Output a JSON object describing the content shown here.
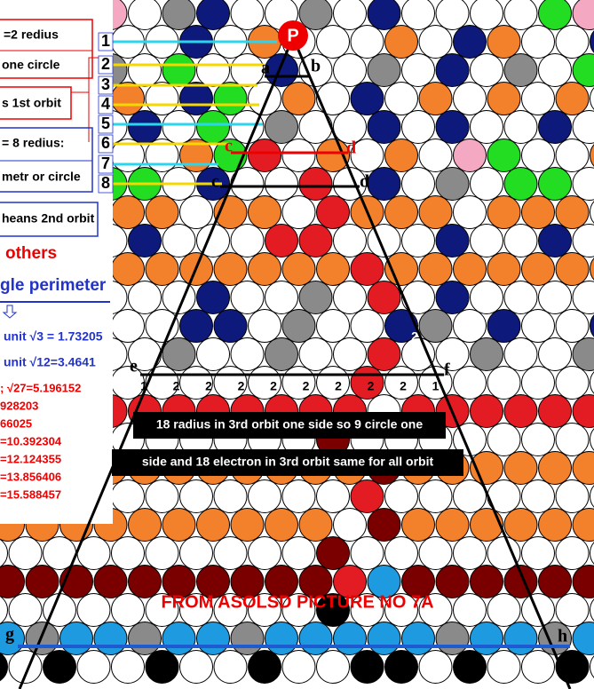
{
  "left_panel": {
    "box1": [
      "=2 redius",
      "one circle"
    ],
    "box2": "s 1st orbit",
    "box3": [
      "= 8 redius:",
      "metr or circle"
    ],
    "box4": "heans 2nd orbit",
    "others": "others",
    "perimeter": "gle perimeter",
    "blue_lines": [
      "unit √3 = 1.73205",
      "unit √12=3.4641"
    ],
    "red_lines": [
      "; √27=5.196152",
      "928203",
      "66025",
      "=10.392304",
      "=12.124355",
      "=13.856406",
      "=15.588457"
    ]
  },
  "row_numbers": [
    "1",
    "2",
    "3",
    "4",
    "5",
    "6",
    "7",
    "8"
  ],
  "points": {
    "p": "P",
    "a": "a",
    "b": "b",
    "c1": "c",
    "d1": "d",
    "c2": "c",
    "d2": "d",
    "e": "e",
    "f": "f",
    "g": "g",
    "h": "h"
  },
  "base_counts": [
    "1",
    "2",
    "2",
    "2",
    "2",
    "2",
    "2",
    "2",
    "2",
    "1"
  ],
  "side_count": "2",
  "captions": [
    "18 radius in 3rd orbit one side so 9 circle one",
    "side and 18 electron in 3rd orbit same for all orbit"
  ],
  "footer": "FROM ASOLSD PICTURE NO 7A"
}
